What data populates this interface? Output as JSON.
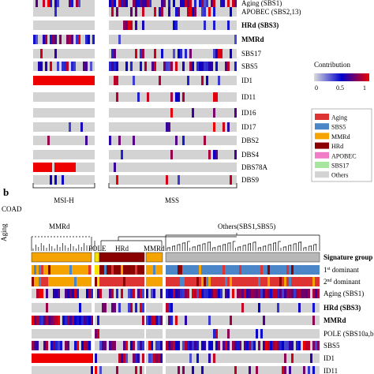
{
  "chart_data": [
    {
      "type": "heatmap",
      "panel": "a",
      "row_labels": [
        "Aging (SBS1)",
        "APOBEC (SBS2,13)",
        "HRd (SBS3)",
        "MMRd",
        "SBS17",
        "SBS5",
        "ID1",
        "ID11",
        "ID16",
        "ID17",
        "DBS2",
        "DBS4",
        "DBS78A",
        "DBS9"
      ],
      "bold_rows": [
        "HRd (SBS3)",
        "MMRd"
      ],
      "groups": [
        "MSI-H",
        "MSS"
      ],
      "colorbar": {
        "title": "Contribution",
        "ticks": [
          "0",
          "0.5",
          "1"
        ],
        "colors": [
          "#dcdcdc",
          "#0000cd",
          "#ee0000"
        ]
      }
    },
    {
      "type": "heatmap",
      "panel": "b",
      "panel_label": "b",
      "cohort": "COAD",
      "cluster_labels": [
        "Aging",
        "MMRd",
        "POLE",
        "HRd",
        "MMRd",
        "Others(SBS1,SBS5)"
      ],
      "row_labels": [
        "Signature group",
        "1st dominant",
        "2nd dominant",
        "Aging (SBS1)",
        "HRd (SBS3)",
        "MMRd",
        "POLE (SBS10a,b)",
        "SBS5",
        "ID1",
        "ID11"
      ],
      "bold_rows": [
        "Signature group",
        "HRd (SBS3)",
        "MMRd"
      ],
      "legend": [
        {
          "label": "Aging",
          "color": "#dd3333"
        },
        {
          "label": "SBS5",
          "color": "#4a86c8"
        },
        {
          "label": "MMRd",
          "color": "#f5a300"
        },
        {
          "label": "HRd",
          "color": "#8b0000"
        },
        {
          "label": "APOBEC",
          "color": "#f07cc8"
        },
        {
          "label": "SBS17",
          "color": "#a8e6a0"
        },
        {
          "label": "Others",
          "color": "#d3d3d3"
        }
      ]
    }
  ],
  "labels": {
    "panel_b": "b",
    "cohort_b": "COAD",
    "group_msih": "MSI-H",
    "group_mss": "MSS",
    "colorbar_title": "Contribution",
    "cb_0": "0",
    "cb_05": "0.5",
    "cb_1": "1"
  }
}
